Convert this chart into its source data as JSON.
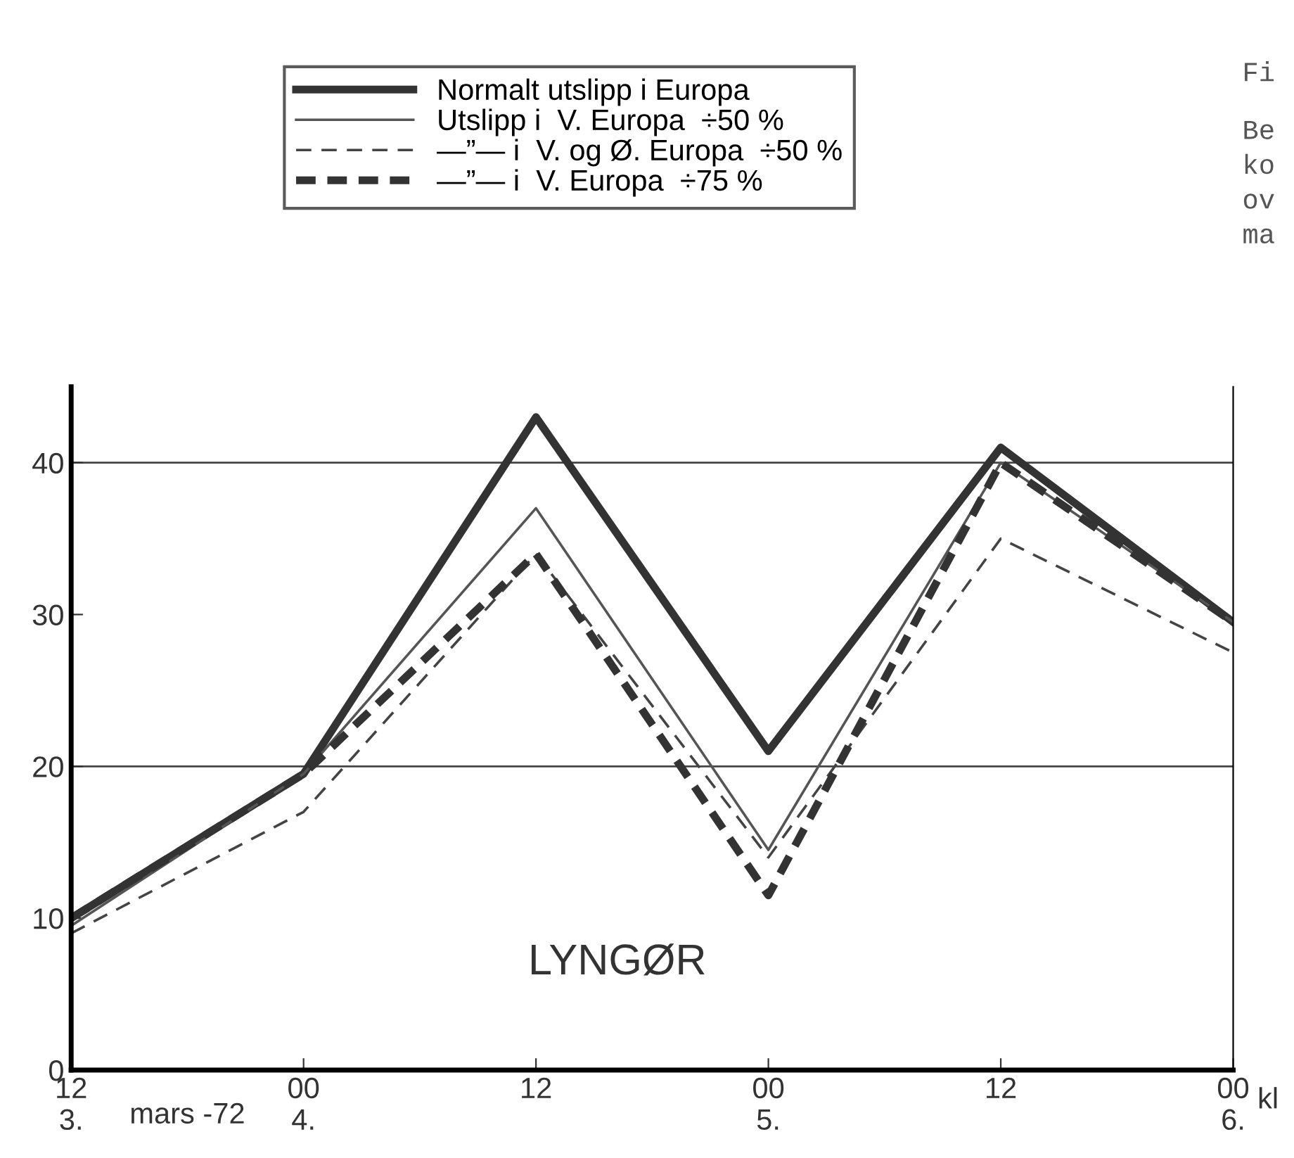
{
  "chart_data": {
    "type": "line",
    "categories": [
      "12\n3.",
      "00\n4.",
      "12",
      "00\n5.",
      "12",
      "00\n6."
    ],
    "xlabel": "kl",
    "ylim": [
      0,
      45
    ],
    "yticks": [
      0,
      10,
      20,
      30,
      40
    ],
    "grid": false,
    "ref_lines": [
      {
        "axis": "y",
        "value": 20,
        "color": "#444444"
      },
      {
        "axis": "y",
        "value": 40,
        "color": "#444444"
      }
    ],
    "legend": "top",
    "series": [
      {
        "name": "Normalt utslipp i Europa",
        "color": "#333333",
        "line_style": "solid",
        "values": [
          10,
          19.5,
          43,
          21,
          41,
          29.5
        ]
      },
      {
        "name": "Utslipp i  V. Europa  ÷50 %",
        "color": "#555555",
        "line_style": "solid",
        "values": [
          9.5,
          19.5,
          37,
          14.5,
          40,
          29.5
        ]
      },
      {
        "name": "—”— i  V. og Ø. Europa  ÷50 %",
        "color": "#444444",
        "line_style": "dashed",
        "values": [
          9,
          17,
          34,
          14,
          35,
          27.5
        ]
      },
      {
        "name": "—”— i  V. Europa  ÷75 %",
        "color": "#333333",
        "line_style": "dashed",
        "values": [
          10,
          19.5,
          34,
          11.5,
          40,
          29.5
        ]
      }
    ],
    "annotations": [
      "LYNGØR",
      "mars -72",
      "Fi",
      "Be",
      "ko",
      "ov",
      "ma"
    ]
  }
}
